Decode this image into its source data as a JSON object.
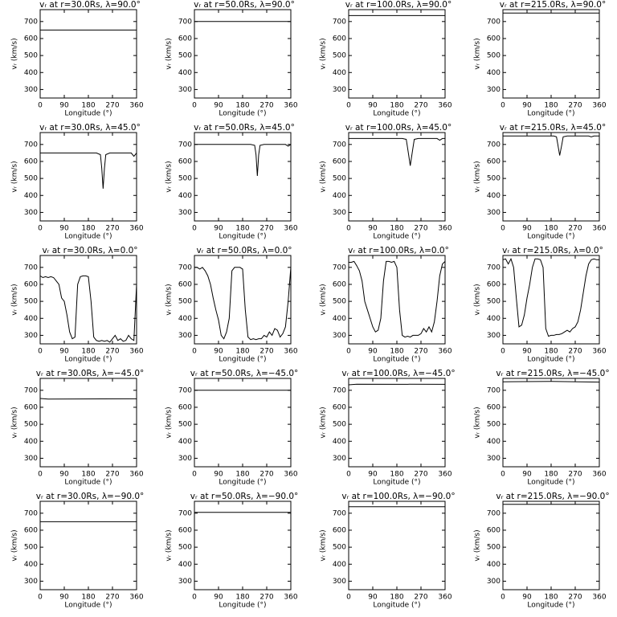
{
  "chart_data": [
    {
      "type": "line",
      "title": "vᵣ at r=30.0Rs, λ=90.0°",
      "xlabel": "Longitude (°)",
      "ylabel": "vᵣ (km/s)",
      "x": [
        0,
        360
      ],
      "values": [
        650,
        650
      ],
      "xlim": [
        0,
        360
      ],
      "ylim": [
        250,
        770
      ],
      "xticks": [
        0,
        90,
        180,
        270,
        360
      ],
      "yticks": [
        300,
        400,
        500,
        600,
        700
      ],
      "color": "#000000"
    },
    {
      "type": "line",
      "title": "vᵣ at r=50.0Rs, λ=90.0°",
      "xlabel": "Longitude (°)",
      "ylabel": "vᵣ (km/s)",
      "x": [
        0,
        360
      ],
      "values": [
        700,
        700
      ],
      "xlim": [
        0,
        360
      ],
      "ylim": [
        250,
        770
      ],
      "xticks": [
        0,
        90,
        180,
        270,
        360
      ],
      "yticks": [
        300,
        400,
        500,
        600,
        700
      ],
      "color": "#000000"
    },
    {
      "type": "line",
      "title": "vᵣ at r=100.0Rs, λ=90.0°",
      "xlabel": "Longitude (°)",
      "ylabel": "vᵣ (km/s)",
      "x": [
        0,
        360
      ],
      "values": [
        735,
        735
      ],
      "xlim": [
        0,
        360
      ],
      "ylim": [
        250,
        770
      ],
      "xticks": [
        0,
        90,
        180,
        270,
        360
      ],
      "yticks": [
        300,
        400,
        500,
        600,
        700
      ],
      "color": "#000000"
    },
    {
      "type": "line",
      "title": "vᵣ at r=215.0Rs, λ=90.0°",
      "xlabel": "Longitude (°)",
      "ylabel": "vᵣ (km/s)",
      "x": [
        0,
        360
      ],
      "values": [
        750,
        750
      ],
      "xlim": [
        0,
        360
      ],
      "ylim": [
        250,
        770
      ],
      "xticks": [
        0,
        90,
        180,
        270,
        360
      ],
      "yticks": [
        300,
        400,
        500,
        600,
        700
      ],
      "color": "#000000"
    },
    {
      "type": "line",
      "title": "vᵣ at r=30.0Rs, λ=45.0°",
      "xlabel": "Longitude (°)",
      "ylabel": "vᵣ (km/s)",
      "x": [
        0,
        210,
        225,
        230,
        235,
        240,
        245,
        260,
        340,
        350,
        360
      ],
      "values": [
        650,
        650,
        640,
        560,
        440,
        560,
        640,
        650,
        650,
        630,
        650
      ],
      "xlim": [
        0,
        360
      ],
      "ylim": [
        250,
        770
      ],
      "xticks": [
        0,
        90,
        180,
        270,
        360
      ],
      "yticks": [
        300,
        400,
        500,
        600,
        700
      ],
      "color": "#000000"
    },
    {
      "type": "line",
      "title": "vᵣ at r=50.0Rs, λ=45.0°",
      "xlabel": "Longitude (°)",
      "ylabel": "vᵣ (km/s)",
      "x": [
        0,
        210,
        225,
        230,
        235,
        240,
        245,
        260,
        340,
        350,
        360
      ],
      "values": [
        700,
        700,
        695,
        640,
        515,
        640,
        695,
        700,
        700,
        690,
        700
      ],
      "xlim": [
        0,
        360
      ],
      "ylim": [
        250,
        770
      ],
      "xticks": [
        0,
        90,
        180,
        270,
        360
      ],
      "yticks": [
        300,
        400,
        500,
        600,
        700
      ],
      "color": "#000000"
    },
    {
      "type": "line",
      "title": "vᵣ at r=100.0Rs, λ=45.0°",
      "xlabel": "Longitude (°)",
      "ylabel": "vᵣ (km/s)",
      "x": [
        0,
        200,
        215,
        220,
        230,
        240,
        245,
        260,
        330,
        340,
        350,
        360
      ],
      "values": [
        735,
        735,
        730,
        680,
        575,
        680,
        730,
        735,
        735,
        725,
        735,
        735
      ],
      "xlim": [
        0,
        360
      ],
      "ylim": [
        250,
        770
      ],
      "xticks": [
        0,
        90,
        180,
        270,
        360
      ],
      "yticks": [
        300,
        400,
        500,
        600,
        700
      ],
      "color": "#000000"
    },
    {
      "type": "line",
      "title": "vᵣ at r=215.0Rs, λ=45.0°",
      "xlabel": "Longitude (°)",
      "ylabel": "vᵣ (km/s)",
      "x": [
        0,
        190,
        200,
        205,
        212,
        220,
        225,
        240,
        320,
        330,
        340,
        360
      ],
      "values": [
        750,
        750,
        745,
        700,
        635,
        700,
        745,
        750,
        750,
        745,
        750,
        750
      ],
      "xlim": [
        0,
        360
      ],
      "ylim": [
        250,
        770
      ],
      "xticks": [
        0,
        90,
        180,
        270,
        360
      ],
      "yticks": [
        300,
        400,
        500,
        600,
        700
      ],
      "color": "#000000"
    },
    {
      "type": "line",
      "title": "vᵣ at r=30.0Rs, λ=0.0°",
      "xlabel": "Longitude (°)",
      "ylabel": "vᵣ (km/s)",
      "x": [
        0,
        10,
        20,
        30,
        40,
        50,
        60,
        70,
        80,
        90,
        100,
        110,
        120,
        130,
        140,
        150,
        160,
        170,
        180,
        190,
        200,
        210,
        220,
        230,
        240,
        250,
        260,
        270,
        280,
        290,
        300,
        310,
        320,
        330,
        340,
        350,
        360
      ],
      "values": [
        650,
        640,
        645,
        640,
        645,
        640,
        620,
        600,
        520,
        500,
        420,
        320,
        280,
        290,
        600,
        645,
        650,
        650,
        645,
        500,
        290,
        270,
        265,
        270,
        265,
        270,
        260,
        280,
        300,
        270,
        280,
        265,
        270,
        300,
        280,
        270,
        600
      ],
      "xlim": [
        0,
        360
      ],
      "ylim": [
        250,
        770
      ],
      "xticks": [
        0,
        90,
        180,
        270,
        360
      ],
      "yticks": [
        300,
        400,
        500,
        600,
        700
      ],
      "color": "#000000"
    },
    {
      "type": "line",
      "title": "vᵣ at r=50.0Rs, λ=0.0°",
      "xlabel": "Longitude (°)",
      "ylabel": "vᵣ (km/s)",
      "x": [
        0,
        10,
        20,
        30,
        40,
        50,
        60,
        70,
        80,
        90,
        100,
        110,
        120,
        130,
        140,
        150,
        160,
        170,
        180,
        190,
        200,
        210,
        220,
        230,
        240,
        250,
        260,
        270,
        280,
        290,
        300,
        310,
        320,
        330,
        340,
        350,
        360
      ],
      "values": [
        700,
        700,
        690,
        700,
        680,
        650,
        600,
        520,
        450,
        390,
        300,
        280,
        320,
        400,
        680,
        700,
        700,
        700,
        690,
        450,
        290,
        275,
        280,
        275,
        280,
        280,
        300,
        290,
        320,
        300,
        340,
        330,
        290,
        310,
        350,
        500,
        700
      ],
      "xlim": [
        0,
        360
      ],
      "ylim": [
        250,
        770
      ],
      "xticks": [
        0,
        90,
        180,
        270,
        360
      ],
      "yticks": [
        300,
        400,
        500,
        600,
        700
      ],
      "color": "#000000"
    },
    {
      "type": "line",
      "title": "vᵣ at r=100.0Rs, λ=0.0°",
      "xlabel": "Longitude (°)",
      "ylabel": "vᵣ (km/s)",
      "x": [
        0,
        10,
        20,
        30,
        40,
        50,
        60,
        70,
        80,
        90,
        100,
        110,
        120,
        130,
        140,
        150,
        160,
        170,
        180,
        190,
        200,
        210,
        220,
        230,
        240,
        250,
        260,
        270,
        280,
        290,
        300,
        310,
        320,
        330,
        340,
        350,
        360
      ],
      "values": [
        730,
        730,
        735,
        710,
        680,
        620,
        500,
        450,
        400,
        350,
        320,
        330,
        400,
        620,
        735,
        735,
        730,
        735,
        700,
        450,
        300,
        290,
        295,
        290,
        300,
        300,
        300,
        310,
        340,
        320,
        350,
        320,
        380,
        500,
        650,
        720,
        735
      ],
      "xlim": [
        0,
        360
      ],
      "ylim": [
        250,
        770
      ],
      "xticks": [
        0,
        90,
        180,
        270,
        360
      ],
      "yticks": [
        300,
        400,
        500,
        600,
        700
      ],
      "color": "#000000"
    },
    {
      "type": "line",
      "title": "vᵣ at r=215.0Rs, λ=0.0°",
      "xlabel": "Longitude (°)",
      "ylabel": "vᵣ (km/s)",
      "x": [
        0,
        10,
        20,
        30,
        40,
        50,
        60,
        70,
        80,
        90,
        100,
        110,
        120,
        130,
        140,
        150,
        160,
        170,
        180,
        190,
        200,
        210,
        220,
        230,
        240,
        250,
        260,
        270,
        280,
        290,
        300,
        310,
        320,
        330,
        340,
        350,
        360
      ],
      "values": [
        745,
        750,
        720,
        750,
        700,
        520,
        350,
        360,
        420,
        520,
        600,
        700,
        750,
        750,
        745,
        700,
        340,
        295,
        300,
        300,
        305,
        305,
        310,
        320,
        330,
        320,
        340,
        350,
        380,
        450,
        550,
        650,
        720,
        745,
        750,
        745,
        745
      ],
      "xlim": [
        0,
        360
      ],
      "ylim": [
        250,
        770
      ],
      "xticks": [
        0,
        90,
        180,
        270,
        360
      ],
      "yticks": [
        300,
        400,
        500,
        600,
        700
      ],
      "color": "#000000"
    },
    {
      "type": "line",
      "title": "vᵣ at r=30.0Rs, λ=−45.0°",
      "xlabel": "Longitude (°)",
      "ylabel": "vᵣ (km/s)",
      "x": [
        0,
        30,
        360
      ],
      "values": [
        652,
        648,
        650
      ],
      "xlim": [
        0,
        360
      ],
      "ylim": [
        250,
        770
      ],
      "xticks": [
        0,
        90,
        180,
        270,
        360
      ],
      "yticks": [
        300,
        400,
        500,
        600,
        700
      ],
      "color": "#000000"
    },
    {
      "type": "line",
      "title": "vᵣ at r=50.0Rs, λ=−45.0°",
      "xlabel": "Longitude (°)",
      "ylabel": "vᵣ (km/s)",
      "x": [
        0,
        360
      ],
      "values": [
        700,
        700
      ],
      "xlim": [
        0,
        360
      ],
      "ylim": [
        250,
        770
      ],
      "xticks": [
        0,
        90,
        180,
        270,
        360
      ],
      "yticks": [
        300,
        400,
        500,
        600,
        700
      ],
      "color": "#000000"
    },
    {
      "type": "line",
      "title": "vᵣ at r=100.0Rs, λ=−45.0°",
      "xlabel": "Longitude (°)",
      "ylabel": "vᵣ (km/s)",
      "x": [
        0,
        30,
        360
      ],
      "values": [
        732,
        736,
        735
      ],
      "xlim": [
        0,
        360
      ],
      "ylim": [
        250,
        770
      ],
      "xticks": [
        0,
        90,
        180,
        270,
        360
      ],
      "yticks": [
        300,
        400,
        500,
        600,
        700
      ],
      "color": "#000000"
    },
    {
      "type": "line",
      "title": "vᵣ at r=215.0Rs, λ=−45.0°",
      "xlabel": "Longitude (°)",
      "ylabel": "vᵣ (km/s)",
      "x": [
        0,
        180,
        360
      ],
      "values": [
        750,
        752,
        748
      ],
      "xlim": [
        0,
        360
      ],
      "ylim": [
        250,
        770
      ],
      "xticks": [
        0,
        90,
        180,
        270,
        360
      ],
      "yticks": [
        300,
        400,
        500,
        600,
        700
      ],
      "color": "#000000"
    },
    {
      "type": "line",
      "title": "vᵣ at r=30.0Rs, λ=−90.0°",
      "xlabel": "Longitude (°)",
      "ylabel": "vᵣ (km/s)",
      "x": [
        0,
        360
      ],
      "values": [
        650,
        650
      ],
      "xlim": [
        0,
        360
      ],
      "ylim": [
        250,
        770
      ],
      "xticks": [
        0,
        90,
        180,
        270,
        360
      ],
      "yticks": [
        300,
        400,
        500,
        600,
        700
      ],
      "color": "#000000"
    },
    {
      "type": "line",
      "title": "vᵣ at r=50.0Rs, λ=−90.0°",
      "xlabel": "Longitude (°)",
      "ylabel": "vᵣ (km/s)",
      "x": [
        0,
        360
      ],
      "values": [
        705,
        705
      ],
      "xlim": [
        0,
        360
      ],
      "ylim": [
        250,
        770
      ],
      "xticks": [
        0,
        90,
        180,
        270,
        360
      ],
      "yticks": [
        300,
        400,
        500,
        600,
        700
      ],
      "color": "#000000"
    },
    {
      "type": "line",
      "title": "vᵣ at r=100.0Rs, λ=−90.0°",
      "xlabel": "Longitude (°)",
      "ylabel": "vᵣ (km/s)",
      "x": [
        0,
        360
      ],
      "values": [
        738,
        738
      ],
      "xlim": [
        0,
        360
      ],
      "ylim": [
        250,
        770
      ],
      "xticks": [
        0,
        90,
        180,
        270,
        360
      ],
      "yticks": [
        300,
        400,
        500,
        600,
        700
      ],
      "color": "#000000"
    },
    {
      "type": "line",
      "title": "vᵣ at r=215.0Rs, λ=−90.0°",
      "xlabel": "Longitude (°)",
      "ylabel": "vᵣ (km/s)",
      "x": [
        0,
        360
      ],
      "values": [
        752,
        752
      ],
      "xlim": [
        0,
        360
      ],
      "ylim": [
        250,
        770
      ],
      "xticks": [
        0,
        90,
        180,
        270,
        360
      ],
      "yticks": [
        300,
        400,
        500,
        600,
        700
      ],
      "color": "#000000"
    }
  ]
}
